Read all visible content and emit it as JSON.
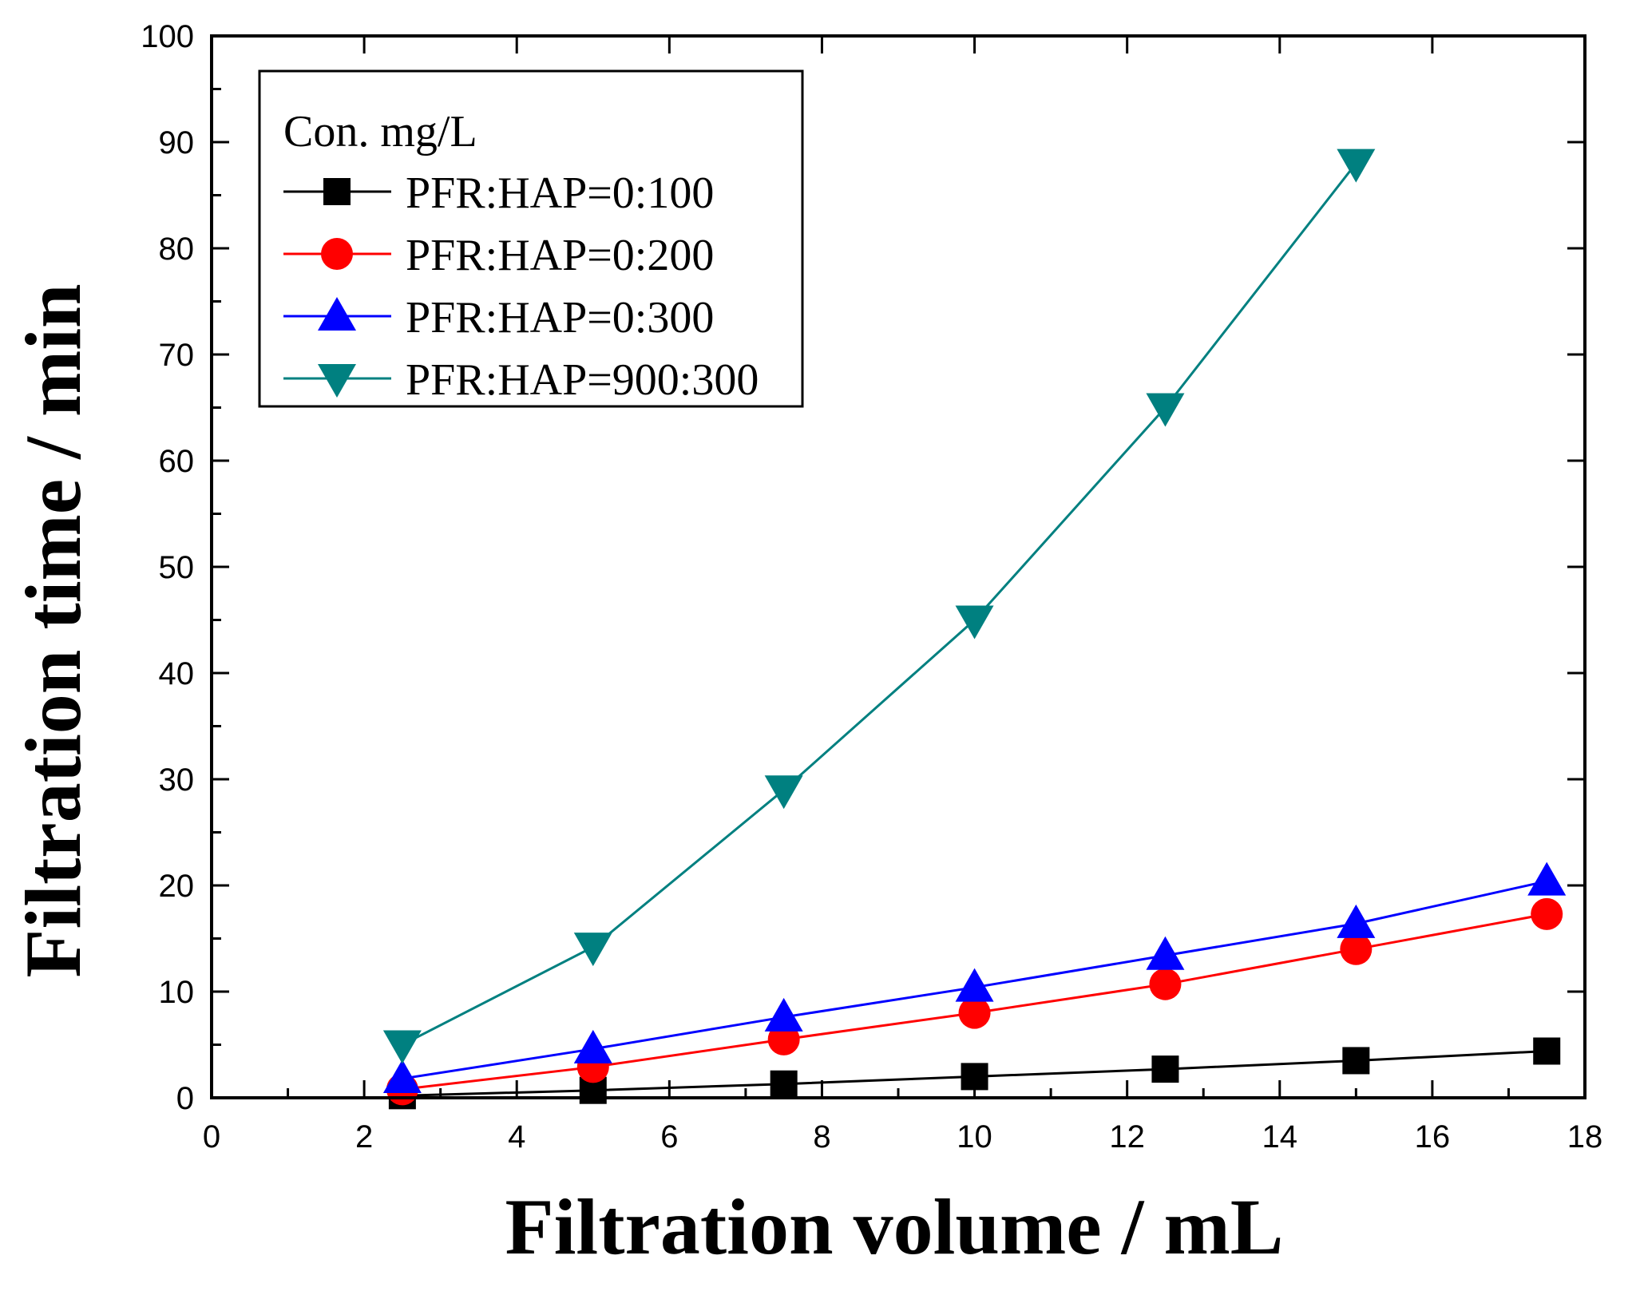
{
  "chart_data": {
    "type": "line",
    "title": "",
    "xlabel": "Filtration volume / mL",
    "ylabel": "Filtration time / min",
    "xlim": [
      0,
      18
    ],
    "ylim": [
      0,
      100
    ],
    "xticks": [
      0,
      2,
      4,
      6,
      8,
      10,
      12,
      14,
      16,
      18
    ],
    "yticks": [
      0,
      10,
      20,
      30,
      40,
      50,
      60,
      70,
      80,
      90,
      100
    ],
    "legend_title": "Con. mg/L",
    "legend_position": "top-left",
    "series": [
      {
        "name": "PFR:HAP=0:100",
        "color": "#000000",
        "marker": "square",
        "x": [
          2.5,
          5,
          7.5,
          10,
          12.5,
          15,
          17.5
        ],
        "y": [
          0.2,
          0.7,
          1.3,
          2.0,
          2.7,
          3.5,
          4.4
        ]
      },
      {
        "name": "PFR:HAP=0:200",
        "color": "#ff0000",
        "marker": "circle",
        "x": [
          2.5,
          5,
          7.5,
          10,
          12.5,
          15,
          17.5
        ],
        "y": [
          0.8,
          2.9,
          5.5,
          8.0,
          10.7,
          14.0,
          17.3
        ]
      },
      {
        "name": "PFR:HAP=0:300",
        "color": "#0000ff",
        "marker": "triangle-up",
        "x": [
          2.5,
          5,
          7.5,
          10,
          12.5,
          15,
          17.5
        ],
        "y": [
          1.8,
          4.6,
          7.6,
          10.4,
          13.4,
          16.4,
          20.4
        ]
      },
      {
        "name": "PFR:HAP=900:300",
        "color": "#008080",
        "marker": "triangle-down",
        "x": [
          2.5,
          5,
          7.5,
          10,
          12.5,
          15
        ],
        "y": [
          5.0,
          14.2,
          29.0,
          45.0,
          65.0,
          88.0
        ]
      }
    ]
  }
}
